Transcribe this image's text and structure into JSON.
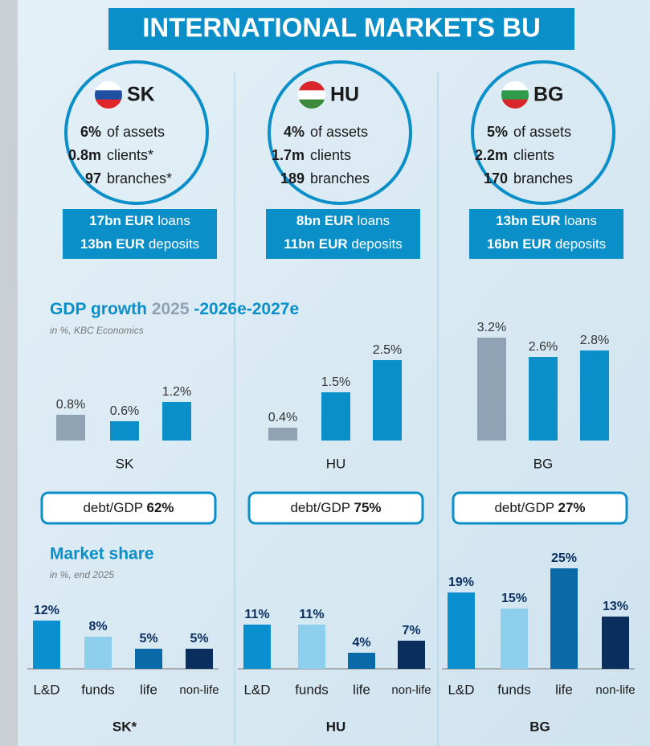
{
  "title": "INTERNATIONAL MARKETS BU",
  "countries": [
    {
      "code": "SK",
      "assets": "6%",
      "assets_label": "of assets",
      "clients": "0.8m",
      "clients_label": "clients*",
      "branches": "97",
      "branches_label": "branches*",
      "loans": "17bn EUR",
      "loans_label": "loans",
      "deposits": "13bn EUR",
      "deposits_label": "deposits",
      "debt_label": "debt/GDP",
      "debt": "62%"
    },
    {
      "code": "HU",
      "assets": "4%",
      "assets_label": "of assets",
      "clients": "1.7m",
      "clients_label": "clients",
      "branches": "189",
      "branches_label": "branches",
      "loans": "8bn EUR",
      "loans_label": "loans",
      "deposits": "11bn EUR",
      "deposits_label": "deposits",
      "debt_label": "debt/GDP",
      "debt": "75%"
    },
    {
      "code": "BG",
      "assets": "5%",
      "assets_label": "of assets",
      "clients": "2.2m",
      "clients_label": "clients",
      "branches": "170",
      "branches_label": "branches",
      "loans": "13bn EUR",
      "loans_label": "loans",
      "deposits": "16bn EUR",
      "deposits_label": "deposits",
      "debt_label": "debt/GDP",
      "debt": "27%"
    }
  ],
  "gdp": {
    "title": "GDP growth",
    "title_a": "2025",
    "title_b": "-2026e-2027e",
    "note": "in %, KBC Economics"
  },
  "market": {
    "title": "Market share",
    "note": "in %, end 2025"
  },
  "chart_data": [
    {
      "type": "bar",
      "x_label": "SK",
      "categories": [
        null,
        null,
        null
      ],
      "values": [
        0.8,
        0.6,
        1.2
      ],
      "value_labels": [
        "0.8%",
        "0.6%",
        "1.2%"
      ],
      "colors": [
        "#8fa3b5",
        "#0a8fc8",
        "#0a8fc8"
      ],
      "ylim": [
        0,
        3.5
      ]
    },
    {
      "type": "bar",
      "x_label": "HU",
      "categories": [
        null,
        null,
        null
      ],
      "values": [
        0.4,
        1.5,
        2.5
      ],
      "value_labels": [
        "0.4%",
        "1.5%",
        "2.5%"
      ],
      "colors": [
        "#8fa3b5",
        "#0a8fc8",
        "#0a8fc8"
      ],
      "ylim": [
        0,
        3.5
      ]
    },
    {
      "type": "bar",
      "x_label": "BG",
      "categories": [
        null,
        null,
        null
      ],
      "values": [
        3.2,
        2.6,
        2.8
      ],
      "value_labels": [
        "3.2%",
        "2.6%",
        "2.8%"
      ],
      "colors": [
        "#8fa3b5",
        "#0a8fc8",
        "#0a8fc8"
      ],
      "ylim": [
        0,
        3.5
      ]
    },
    {
      "type": "bar",
      "x_label": "SK*",
      "categories": [
        "L&D",
        "funds",
        "life",
        "non-life"
      ],
      "values": [
        12,
        8,
        5,
        5
      ],
      "value_labels": [
        "12%",
        "8%",
        "5%",
        "5%"
      ],
      "colors": [
        "#0a8fd0",
        "#8fcfee",
        "#0a6aa8",
        "#0a2f5f"
      ],
      "ylim": [
        0,
        28
      ]
    },
    {
      "type": "bar",
      "x_label": "HU",
      "categories": [
        "L&D",
        "funds",
        "life",
        "non-life"
      ],
      "values": [
        11,
        11,
        4,
        7
      ],
      "value_labels": [
        "11%",
        "11%",
        "4%",
        "7%"
      ],
      "colors": [
        "#0a8fd0",
        "#8fcfee",
        "#0a6aa8",
        "#0a2f5f"
      ],
      "ylim": [
        0,
        28
      ]
    },
    {
      "type": "bar",
      "x_label": "BG",
      "categories": [
        "L&D",
        "funds",
        "life",
        "non-life"
      ],
      "values": [
        19,
        15,
        25,
        13
      ],
      "value_labels": [
        "19%",
        "15%",
        "25%",
        "13%"
      ],
      "colors": [
        "#0a8fd0",
        "#8fcfee",
        "#0a6aa8",
        "#0a2f5f"
      ],
      "ylim": [
        0,
        28
      ]
    }
  ]
}
